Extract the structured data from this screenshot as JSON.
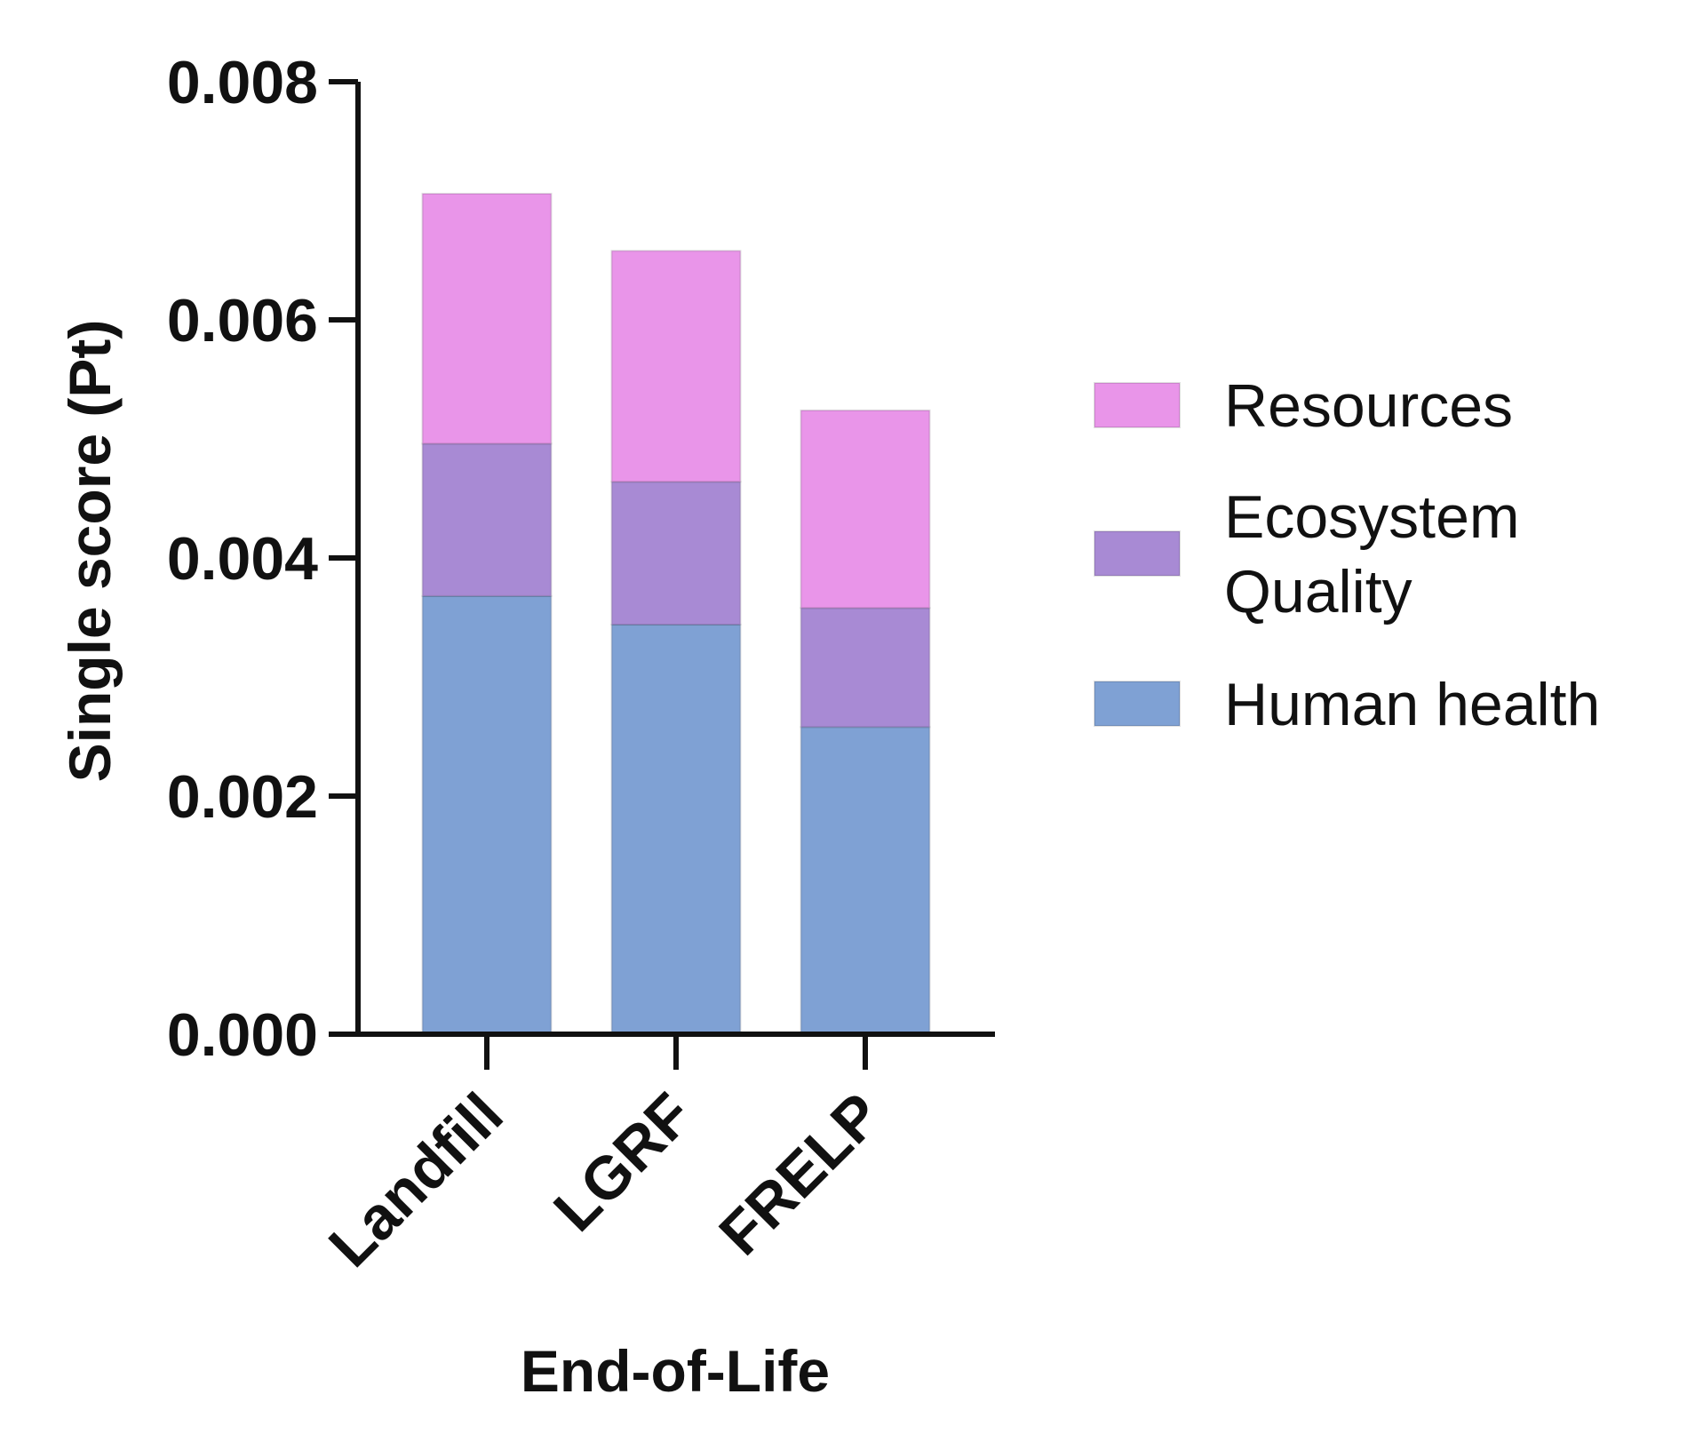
{
  "chart_data": {
    "type": "bar",
    "stacked": true,
    "categories": [
      "Landfill",
      "LGRF",
      "FRELP"
    ],
    "series": [
      {
        "name": "Human health",
        "values": [
          0.00368,
          0.00344,
          0.00258
        ],
        "color": "#7fa1d4"
      },
      {
        "name": "Ecosystem Quality",
        "values": [
          0.00128,
          0.0012,
          0.001
        ],
        "color": "#a88ad4"
      },
      {
        "name": "Resources",
        "values": [
          0.0021,
          0.00194,
          0.00166
        ],
        "color": "#e995e9"
      }
    ],
    "xlabel": "End-of-Life",
    "ylabel": "Single score (Pt)",
    "ylim": [
      0,
      0.008
    ],
    "yticks": [
      "0.000",
      "0.002",
      "0.004",
      "0.006",
      "0.008"
    ],
    "ytick_values": [
      0,
      0.002,
      0.004,
      0.006,
      0.008
    ],
    "grid": false,
    "legend": {
      "placement": "right",
      "order": [
        "Resources",
        "Ecosystem Quality",
        "Human health"
      ],
      "lines": {
        "Resources": [
          "Resources"
        ],
        "Ecosystem Quality": [
          "Ecosystem",
          "Quality"
        ],
        "Human health": [
          "Human health"
        ]
      }
    },
    "axis_color": "#111111"
  }
}
